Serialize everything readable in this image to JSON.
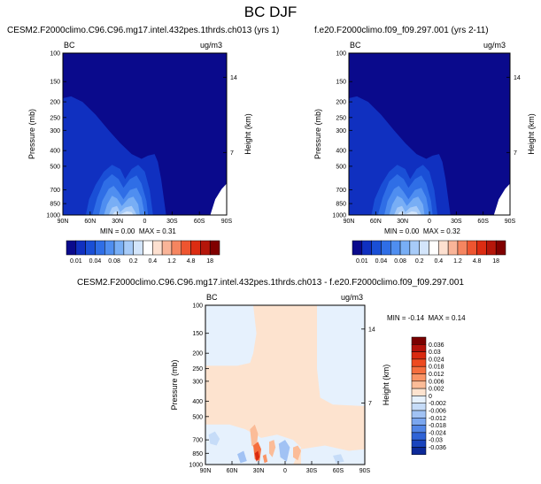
{
  "figure_title": "BC DJF",
  "panels": [
    {
      "title": "CESM2.F2000climo.C96.C96.mg17.intel.432pes.1thrds.ch013 (yrs 1)",
      "variable": "BC",
      "units": "ug/m3",
      "min_label": "MIN =",
      "min_value": "0.00",
      "max_label": "MAX =",
      "max_value": "0.31"
    },
    {
      "title": "f.e20.F2000climo.f09_f09.297.001 (yrs 2-11)",
      "variable": "BC",
      "units": "ug/m3",
      "min_label": "MIN =",
      "min_value": "0.00",
      "max_label": "MAX =",
      "max_value": "0.32"
    },
    {
      "title": "CESM2.F2000climo.C96.C96.mg17.intel.432pes.1thrds.ch013 - f.e20.F2000climo.f09_f09.297.001",
      "variable": "BC",
      "units": "ug/m3",
      "min_label": "MIN =",
      "min_value": "-0.14",
      "max_label": "MAX =",
      "max_value": "0.14"
    }
  ],
  "axes": {
    "ylabel_left": "Pressure (mb)",
    "ylabel_right": "Height (km)",
    "pressure_ticks": [
      "100",
      "150",
      "200",
      "250",
      "300",
      "400",
      "500",
      "700",
      "850",
      "1000"
    ],
    "height_ticks": [
      "14",
      "7"
    ],
    "lat_ticks": [
      "90N",
      "60N",
      "30N",
      "0",
      "30S",
      "60S",
      "90S"
    ]
  },
  "colorbar_levels": [
    "0.01",
    "0.04",
    "0.08",
    "0.2",
    "0.4",
    "1.2",
    "4.8",
    "18"
  ],
  "colorbar_colors": [
    "#0a0a8c",
    "#1030c0",
    "#1a4fd6",
    "#2f6ee6",
    "#4f8ef0",
    "#78aef5",
    "#a7cbf8",
    "#d3e5fb",
    "#ffffff",
    "#fde0d0",
    "#f9b498",
    "#f58560",
    "#ee5530",
    "#dc2c12",
    "#b5160a",
    "#800000"
  ],
  "diff_levels": [
    "0.036",
    "0.03",
    "0.024",
    "0.018",
    "0.012",
    "0.006",
    "0.002",
    "0",
    "-0.002",
    "-0.006",
    "-0.012",
    "-0.018",
    "-0.024",
    "-0.03",
    "-0.036"
  ],
  "diff_colors": [
    "#7a0000",
    "#b3120a",
    "#d92a10",
    "#ee4a20",
    "#f56e3e",
    "#f99466",
    "#fbbc98",
    "#fde3cf",
    "#e6f1fd",
    "#c6dcf8",
    "#a1c2f4",
    "#7aa6ef",
    "#5185e6",
    "#2f63d6",
    "#1a44bd",
    "#0d2a99"
  ],
  "chart_data": [
    {
      "type": "heatmap",
      "title": "CESM2.F2000climo.C96.C96.mg17.intel.432pes.1thrds.ch013 (yrs 1)",
      "xlabel": "",
      "ylabel": "Pressure (mb)",
      "x_ticks": [
        "90N",
        "60N",
        "30N",
        "0",
        "30S",
        "60S",
        "90S"
      ],
      "y_ticks": [
        "100",
        "150",
        "200",
        "250",
        "300",
        "400",
        "500",
        "700",
        "850",
        "1000"
      ],
      "ylim": [
        1000,
        100
      ],
      "yscale": "log",
      "min": 0.0,
      "max": 0.31,
      "units": "ug/m3",
      "levels": [
        0.01,
        0.04,
        0.08,
        0.2,
        0.4,
        1.2,
        4.8,
        18
      ]
    },
    {
      "type": "heatmap",
      "title": "f.e20.F2000climo.f09_f09.297.001 (yrs 2-11)",
      "xlabel": "",
      "ylabel": "Pressure (mb)",
      "x_ticks": [
        "90N",
        "60N",
        "30N",
        "0",
        "30S",
        "60S",
        "90S"
      ],
      "y_ticks": [
        "100",
        "150",
        "200",
        "250",
        "300",
        "400",
        "500",
        "700",
        "850",
        "1000"
      ],
      "ylim": [
        1000,
        100
      ],
      "yscale": "log",
      "min": 0.0,
      "max": 0.32,
      "units": "ug/m3",
      "levels": [
        0.01,
        0.04,
        0.08,
        0.2,
        0.4,
        1.2,
        4.8,
        18
      ]
    },
    {
      "type": "heatmap",
      "title": "CESM2.F2000climo.C96.C96.mg17.intel.432pes.1thrds.ch013 - f.e20.F2000climo.f09_f09.297.001",
      "xlabel": "",
      "ylabel": "Pressure (mb)",
      "x_ticks": [
        "90N",
        "60N",
        "30N",
        "0",
        "30S",
        "60S",
        "90S"
      ],
      "y_ticks": [
        "100",
        "150",
        "200",
        "250",
        "300",
        "400",
        "500",
        "700",
        "850",
        "1000"
      ],
      "ylim": [
        1000,
        100
      ],
      "yscale": "log",
      "min": -0.14,
      "max": 0.14,
      "units": "ug/m3",
      "levels": [
        0.036,
        0.03,
        0.024,
        0.018,
        0.012,
        0.006,
        0.002,
        0,
        -0.002,
        -0.006,
        -0.012,
        -0.018,
        -0.024,
        -0.03,
        -0.036
      ]
    }
  ]
}
